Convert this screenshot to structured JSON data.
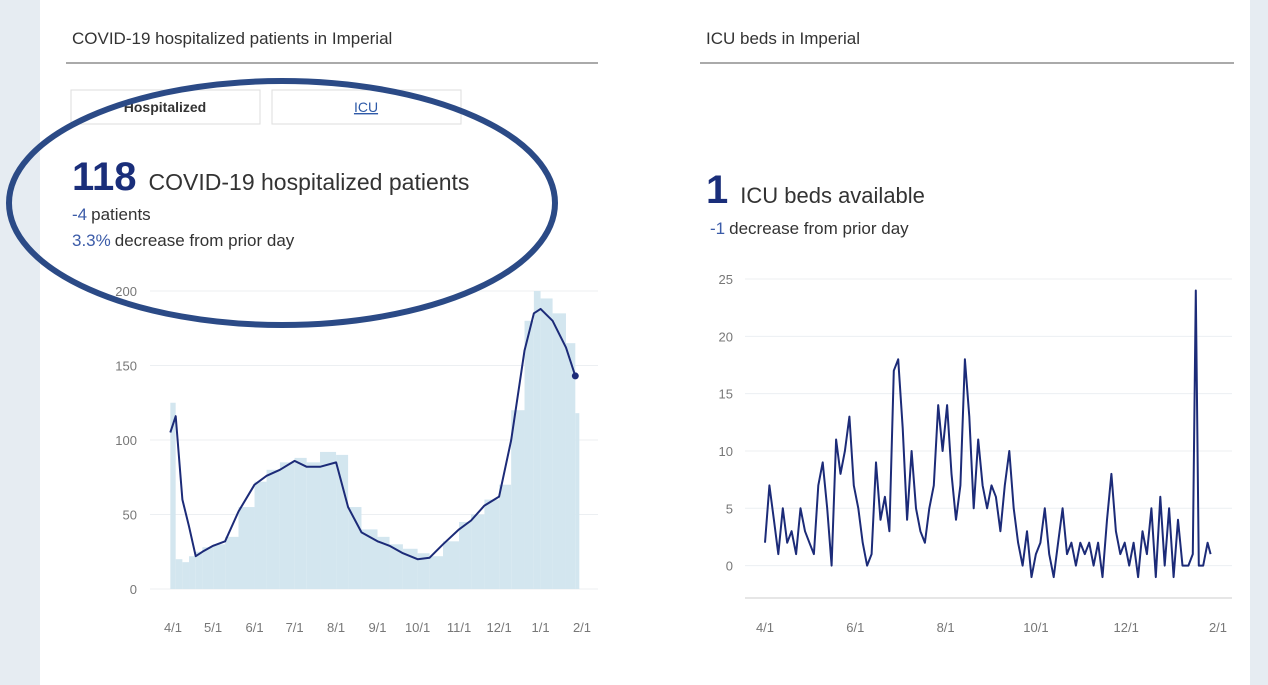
{
  "panels": [
    {
      "title": "COVID-19 hospitalized patients in Imperial",
      "tabs": [
        "Hospitalized",
        "ICU"
      ],
      "headline": {
        "value": 118,
        "label": "COVID-19 hospitalized patients",
        "change": -4,
        "change_text": "patients",
        "percent": "3.3%",
        "percent_text": "decrease from prior day"
      }
    },
    {
      "title": "ICU beds in Imperial",
      "headline": {
        "value": 1,
        "label": "ICU beds available",
        "change": -1,
        "change_text": "decrease from prior day"
      }
    }
  ],
  "chart_data": [
    {
      "type": "line",
      "x": [
        "3/30",
        "4/3",
        "4/8",
        "4/13",
        "4/18",
        "4/23",
        "5/1",
        "5/10",
        "5/20",
        "6/1",
        "6/10",
        "6/20",
        "7/1",
        "7/10",
        "7/20",
        "8/1",
        "8/10",
        "8/20",
        "9/1",
        "9/10",
        "9/20",
        "10/1",
        "10/10",
        "10/20",
        "11/1",
        "11/10",
        "11/20",
        "12/1",
        "12/10",
        "12/20",
        "12/27",
        "1/1",
        "1/10",
        "1/20",
        "1/27"
      ],
      "series": [
        {
          "type": "bar",
          "color": "#d3e6ef",
          "values": [
            125,
            20,
            18,
            22,
            25,
            28,
            30,
            35,
            55,
            72,
            80,
            85,
            88,
            85,
            92,
            90,
            55,
            40,
            35,
            30,
            27,
            24,
            22,
            32,
            45,
            50,
            60,
            70,
            120,
            180,
            200,
            195,
            185,
            165,
            118
          ]
        },
        {
          "type": "line",
          "color": "#1c2b78",
          "values": [
            105,
            116,
            60,
            42,
            22,
            25,
            29,
            32,
            52,
            70,
            76,
            80,
            86,
            82,
            82,
            85,
            55,
            38,
            32,
            29,
            24,
            20,
            21,
            30,
            40,
            46,
            56,
            62,
            100,
            160,
            185,
            188,
            180,
            162,
            143
          ]
        }
      ],
      "ylim": [
        0,
        200
      ],
      "yticks": [
        0,
        50,
        100,
        150,
        200
      ],
      "xticks": [
        "4/1",
        "5/1",
        "6/1",
        "7/1",
        "8/1",
        "9/1",
        "10/1",
        "11/1",
        "12/1",
        "1/1",
        "2/1"
      ],
      "grid": true
    },
    {
      "type": "line",
      "x": [
        "4/1",
        "4/4",
        "4/7",
        "4/10",
        "4/13",
        "4/16",
        "4/19",
        "4/22",
        "4/25",
        "4/28",
        "5/1",
        "5/4",
        "5/7",
        "5/10",
        "5/13",
        "5/16",
        "5/19",
        "5/22",
        "5/25",
        "5/28",
        "5/31",
        "6/3",
        "6/6",
        "6/9",
        "6/12",
        "6/15",
        "6/18",
        "6/21",
        "6/24",
        "6/27",
        "6/30",
        "7/3",
        "7/6",
        "7/9",
        "7/12",
        "7/15",
        "7/18",
        "7/21",
        "7/24",
        "7/27",
        "7/30",
        "8/2",
        "8/5",
        "8/8",
        "8/11",
        "8/14",
        "8/17",
        "8/20",
        "8/23",
        "8/26",
        "8/29",
        "9/1",
        "9/4",
        "9/7",
        "9/10",
        "9/13",
        "9/16",
        "9/19",
        "9/22",
        "9/25",
        "9/28",
        "10/1",
        "10/4",
        "10/7",
        "10/10",
        "10/13",
        "10/16",
        "10/19",
        "10/22",
        "10/25",
        "10/28",
        "10/31",
        "11/3",
        "11/6",
        "11/9",
        "11/12",
        "11/15",
        "11/18",
        "11/21",
        "11/24",
        "11/27",
        "11/30",
        "12/3",
        "12/6",
        "12/9",
        "12/12",
        "12/15",
        "12/18",
        "12/21",
        "12/24",
        "12/27",
        "12/30",
        "1/2",
        "1/5",
        "1/8",
        "1/12",
        "1/15",
        "1/17",
        "1/19",
        "1/22",
        "1/25",
        "1/27"
      ],
      "series": [
        {
          "type": "line",
          "color": "#1c2b78",
          "values": [
            2,
            7,
            4,
            1,
            5,
            2,
            3,
            1,
            5,
            3,
            2,
            1,
            7,
            9,
            5,
            0,
            11,
            8,
            10,
            13,
            7,
            5,
            2,
            0,
            1,
            9,
            4,
            6,
            3,
            17,
            18,
            12,
            4,
            10,
            5,
            3,
            2,
            5,
            7,
            14,
            10,
            14,
            8,
            4,
            7,
            18,
            13,
            5,
            11,
            7,
            5,
            7,
            6,
            3,
            7,
            10,
            5,
            2,
            0,
            3,
            -1,
            1,
            2,
            5,
            1,
            -1,
            2,
            5,
            1,
            2,
            0,
            2,
            1,
            2,
            0,
            2,
            -1,
            4,
            8,
            3,
            1,
            2,
            0,
            2,
            -1,
            3,
            1,
            5,
            -1,
            6,
            0,
            5,
            -1,
            4,
            0,
            0,
            1,
            24,
            0,
            0,
            2,
            1
          ]
        }
      ],
      "ylim": [
        -3,
        25
      ],
      "yticks": [
        0,
        5,
        10,
        15,
        20,
        25
      ],
      "xticks": [
        "4/1",
        "6/1",
        "8/1",
        "10/1",
        "12/1",
        "2/1"
      ],
      "grid": true
    }
  ]
}
